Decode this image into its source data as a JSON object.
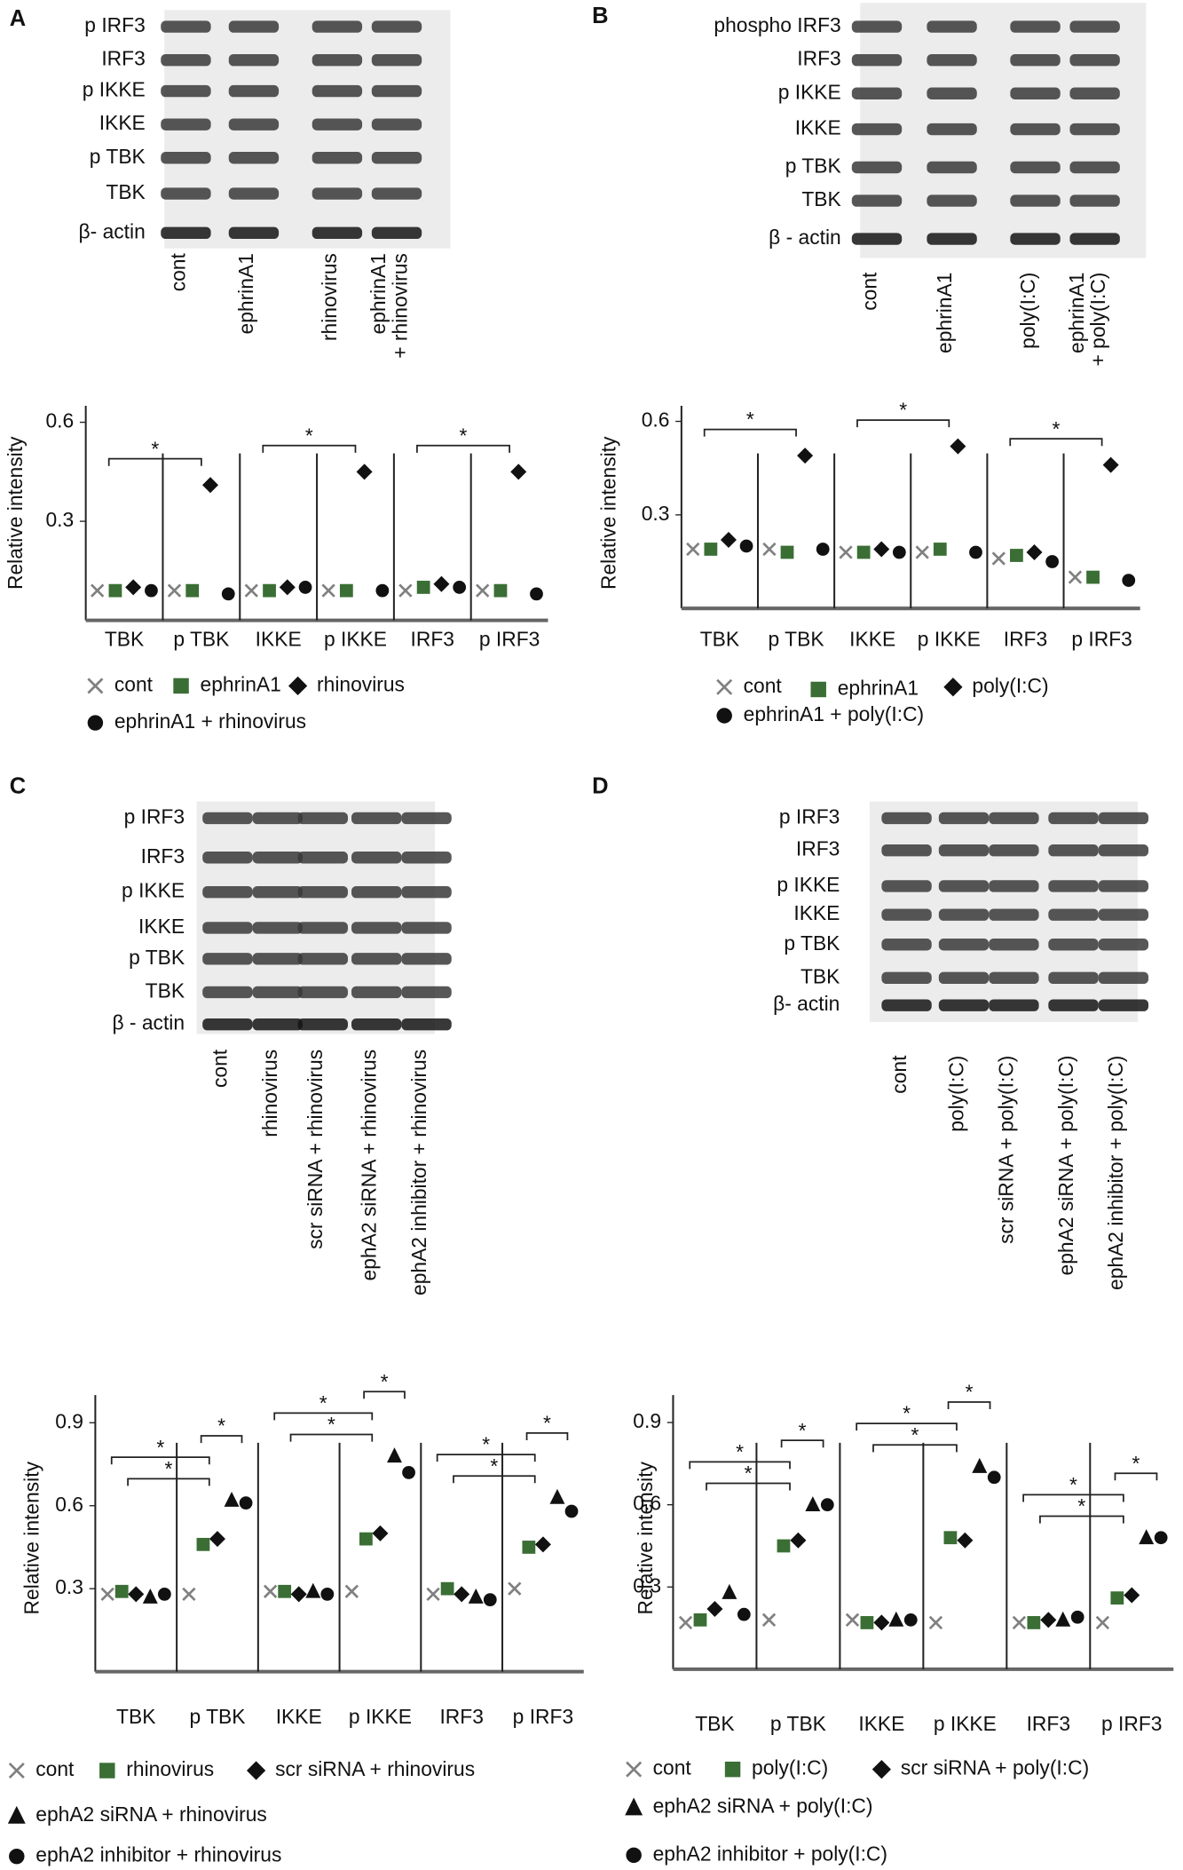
{
  "panels": [
    {
      "label": "A",
      "rows": [
        "p IRF3",
        "IRF3",
        "p IKKE",
        "IKKE",
        "p TBK",
        "TBK",
        "β- actin"
      ],
      "lanes": [
        [
          "cont"
        ],
        [
          "ephrinA1"
        ],
        [
          "rhinovirus"
        ],
        [
          "ephrinA1",
          "+ rhinovirus"
        ]
      ]
    },
    {
      "label": "B",
      "rows": [
        "phospho IRF3",
        "IRF3",
        "p IKKE",
        "IKKE",
        "p TBK",
        "TBK",
        "β - actin"
      ],
      "lanes": [
        [
          "cont"
        ],
        [
          "ephrinA1"
        ],
        [
          "poly(I:C)"
        ],
        [
          "ephrinA1",
          "+ poly(I:C)"
        ]
      ]
    },
    {
      "label": "C",
      "rows": [
        "p IRF3",
        "IRF3",
        "p IKKE",
        "IKKE",
        "p TBK",
        "TBK",
        "β  - actin"
      ],
      "lanes": [
        [
          "cont"
        ],
        [
          "rhinovirus"
        ],
        [
          "scr siRNA + rhinovirus"
        ],
        [
          "ephA2 siRNA + rhinovirus"
        ],
        [
          "ephA2 inhibitor + rhinovirus"
        ]
      ]
    },
    {
      "label": "D",
      "rows": [
        "p IRF3",
        "IRF3",
        "p IKKE",
        "IKKE",
        "p TBK",
        "TBK",
        "β- actin"
      ],
      "lanes": [
        [
          "cont"
        ],
        [
          "poly(I:C)"
        ],
        [
          "scr siRNA + poly(I:C)"
        ],
        [
          "ephA2 siRNA + poly(I:C)"
        ],
        [
          "ephA2 inhibitor + poly(I:C)"
        ]
      ]
    }
  ],
  "chart_data": [
    {
      "type": "dot",
      "y_label": "Relative intensity",
      "categories": [
        "TBK",
        "p TBK",
        "IKKE",
        "p IKKE",
        "IRF3",
        "p IRF3"
      ],
      "ylim": [
        0,
        0.65
      ],
      "yticks": [
        0.3,
        0.6
      ],
      "annotations": [
        "*",
        "*",
        "*"
      ],
      "series": [
        {
          "name": "cont",
          "color": "#808080",
          "marker": "x",
          "values": [
            0.09,
            0.09,
            0.09,
            0.09,
            0.09,
            0.09
          ]
        },
        {
          "name": "ephrinA1",
          "color": "#3a6e35",
          "marker": "square",
          "values": [
            0.09,
            0.09,
            0.09,
            0.09,
            0.1,
            0.09
          ]
        },
        {
          "name": "rhinovirus",
          "color": "#111111",
          "marker": "diamond",
          "values": [
            0.1,
            0.41,
            0.1,
            0.45,
            0.11,
            0.45
          ]
        },
        {
          "name": "ephrinA1 + rhinovirus",
          "color": "#111111",
          "marker": "circle",
          "values": [
            0.09,
            0.08,
            0.1,
            0.09,
            0.1,
            0.08
          ]
        }
      ]
    },
    {
      "type": "dot",
      "y_label": "Relative intensity",
      "categories": [
        "TBK",
        "p TBK",
        "IKKE",
        "p IKKE",
        "IRF3",
        "p IRF3"
      ],
      "ylim": [
        0,
        0.65
      ],
      "yticks": [
        0.3,
        0.6
      ],
      "annotations": [
        "*",
        "*",
        "*"
      ],
      "series": [
        {
          "name": "cont",
          "color": "#808080",
          "marker": "x",
          "values": [
            0.19,
            0.19,
            0.18,
            0.18,
            0.16,
            0.1
          ]
        },
        {
          "name": "ephrinA1",
          "color": "#3a6e35",
          "marker": "square",
          "values": [
            0.19,
            0.18,
            0.18,
            0.19,
            0.17,
            0.1
          ]
        },
        {
          "name": "poly(I:C)",
          "color": "#111111",
          "marker": "diamond",
          "values": [
            0.22,
            0.49,
            0.19,
            0.52,
            0.18,
            0.46
          ]
        },
        {
          "name": "ephrinA1 + poly(I:C)",
          "color": "#111111",
          "marker": "circle",
          "values": [
            0.2,
            0.19,
            0.18,
            0.18,
            0.15,
            0.09
          ]
        }
      ]
    },
    {
      "type": "dot",
      "y_label": "Relative intensity",
      "categories": [
        "TBK",
        "p TBK",
        "IKKE",
        "p IKKE",
        "IRF3",
        "p IRF3"
      ],
      "ylim": [
        0,
        1.0
      ],
      "yticks": [
        0.3,
        0.6,
        0.9
      ],
      "annotations": [
        "*",
        "*",
        "*",
        "*",
        "*",
        "*",
        "*",
        "*",
        "*"
      ],
      "series": [
        {
          "name": "cont",
          "color": "#808080",
          "marker": "x",
          "values": [
            0.28,
            0.28,
            0.29,
            0.29,
            0.28,
            0.3
          ]
        },
        {
          "name": "rhinovirus",
          "color": "#3a6e35",
          "marker": "square",
          "values": [
            0.29,
            0.46,
            0.29,
            0.48,
            0.3,
            0.45
          ]
        },
        {
          "name": "scr siRNA + rhinovirus",
          "color": "#111111",
          "marker": "diamond",
          "values": [
            0.28,
            0.48,
            0.28,
            0.5,
            0.28,
            0.46
          ]
        },
        {
          "name": "ephA2 siRNA + rhinovirus",
          "color": "#111111",
          "marker": "triangle",
          "values": [
            0.27,
            0.62,
            0.29,
            0.78,
            0.27,
            0.63
          ]
        },
        {
          "name": "ephA2 inhibitor + rhinovirus",
          "color": "#111111",
          "marker": "circle",
          "values": [
            0.28,
            0.61,
            0.28,
            0.72,
            0.26,
            0.58
          ]
        }
      ]
    },
    {
      "type": "dot",
      "y_label": "Relative intensity",
      "categories": [
        "TBK",
        "p TBK",
        "IKKE",
        "p IKKE",
        "IRF3",
        "p IRF3"
      ],
      "ylim": [
        0,
        1.0
      ],
      "yticks": [
        0.3,
        0.6,
        0.9
      ],
      "annotations": [
        "*",
        "*",
        "*",
        "*",
        "*",
        "*",
        "*",
        "*",
        "*"
      ],
      "series": [
        {
          "name": "cont",
          "color": "#808080",
          "marker": "x",
          "values": [
            0.17,
            0.18,
            0.18,
            0.17,
            0.17,
            0.17
          ]
        },
        {
          "name": "poly(I:C)",
          "color": "#3a6e35",
          "marker": "square",
          "values": [
            0.18,
            0.45,
            0.17,
            0.48,
            0.17,
            0.26
          ]
        },
        {
          "name": "scr siRNA + poly(I:C)",
          "color": "#111111",
          "marker": "diamond",
          "values": [
            0.22,
            0.47,
            0.17,
            0.47,
            0.18,
            0.27
          ]
        },
        {
          "name": "ephA2 siRNA + poly(I:C)",
          "color": "#111111",
          "marker": "triangle",
          "values": [
            0.28,
            0.6,
            0.18,
            0.74,
            0.18,
            0.48
          ]
        },
        {
          "name": "ephA2 inhibitor + poly(I:C)",
          "color": "#111111",
          "marker": "circle",
          "values": [
            0.2,
            0.6,
            0.18,
            0.7,
            0.19,
            0.48
          ]
        }
      ]
    }
  ]
}
